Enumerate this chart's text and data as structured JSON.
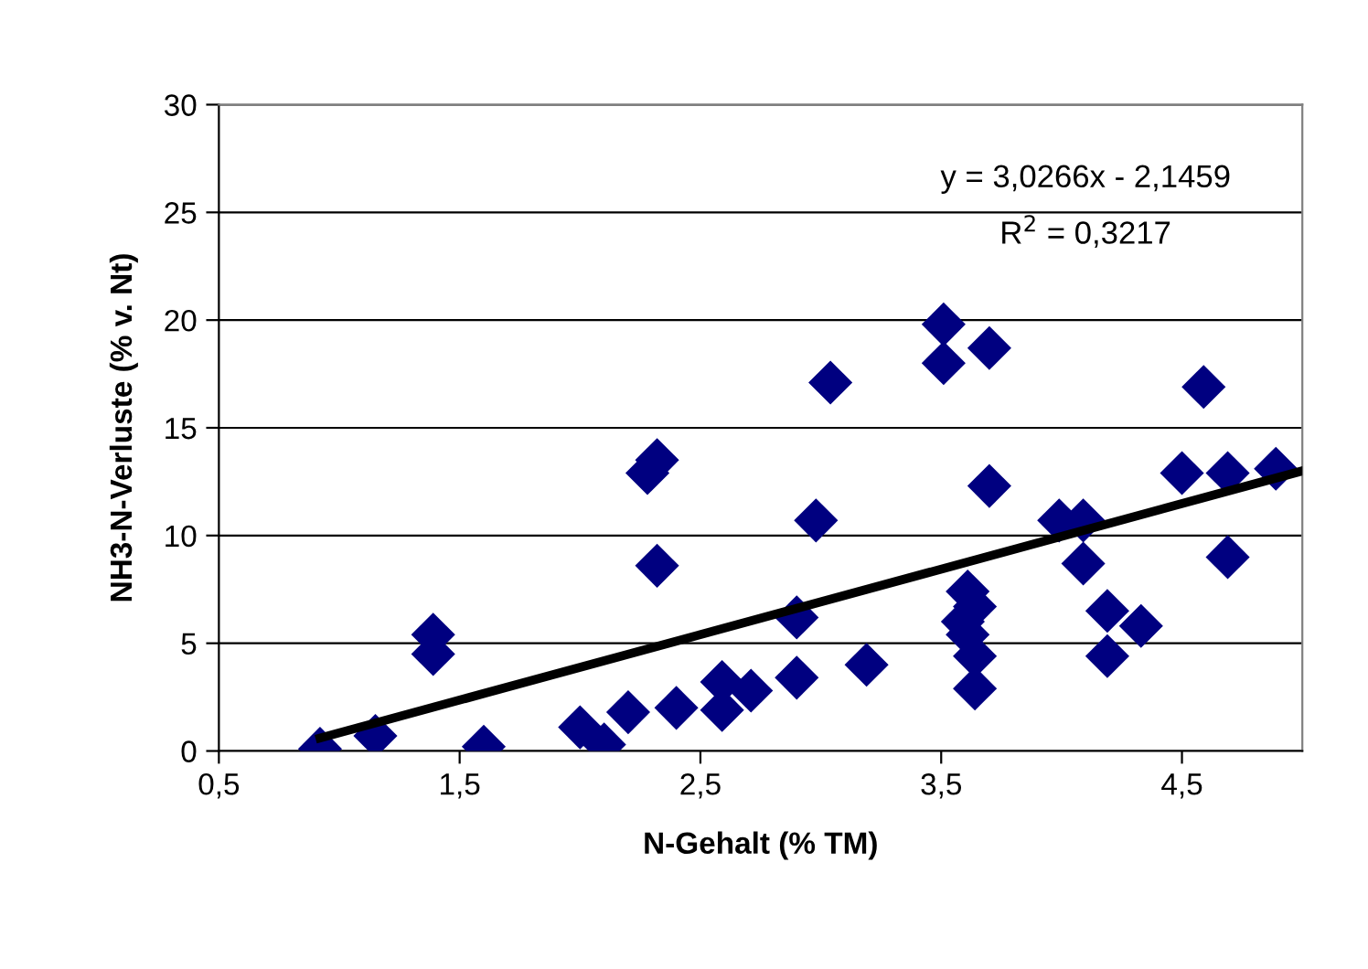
{
  "chart_data": {
    "type": "scatter",
    "xlabel": "N-Gehalt (% TM)",
    "ylabel": "NH3-N-Verluste (% v. Nt)",
    "xlim": [
      0.5,
      5.0
    ],
    "ylim": [
      0,
      30
    ],
    "xticks": [
      {
        "value": 0.5,
        "label": "0,5"
      },
      {
        "value": 1.5,
        "label": "1,5"
      },
      {
        "value": 2.5,
        "label": "2,5"
      },
      {
        "value": 3.5,
        "label": "3,5"
      },
      {
        "value": 4.5,
        "label": "4,5"
      }
    ],
    "yticks": [
      0,
      5,
      10,
      15,
      20,
      25,
      30
    ],
    "grid": "y",
    "legend": false,
    "marker": "diamond",
    "annotations": [
      "y = 3,0266x - 2,1459",
      "R$^{2}$ = 0,3217"
    ],
    "series": [
      {
        "color": "#000080",
        "x": [
          0.92,
          1.15,
          1.39,
          1.39,
          1.6,
          2.0,
          2.1,
          2.2,
          2.28,
          2.32,
          2.32,
          2.4,
          2.59,
          2.59,
          2.71,
          2.9,
          2.9,
          2.98,
          3.04,
          3.19,
          3.51,
          3.51,
          3.7,
          3.7,
          3.61,
          3.64,
          3.59,
          3.61,
          3.64,
          3.64,
          3.99,
          4.09,
          4.09,
          4.19,
          4.19,
          4.33,
          4.5,
          4.59,
          4.69,
          4.69,
          4.89
        ],
        "values": [
          0.1,
          0.7,
          5.4,
          4.5,
          0.2,
          1.1,
          0.3,
          1.8,
          12.9,
          13.5,
          8.6,
          2.0,
          3.2,
          1.9,
          2.8,
          3.4,
          6.2,
          10.7,
          17.1,
          4.0,
          19.8,
          18.0,
          18.7,
          12.3,
          7.4,
          6.7,
          6.0,
          5.4,
          4.4,
          2.9,
          10.7,
          10.7,
          8.7,
          6.5,
          4.4,
          5.8,
          12.9,
          16.9,
          12.9,
          9.0,
          13.1
        ]
      },
      {
        "type": "line",
        "color": "#000000",
        "marker": "none",
        "line_style": "solid",
        "x": [
          0.92,
          5.0
        ],
        "values": [
          0.6,
          13.0
        ]
      }
    ]
  }
}
